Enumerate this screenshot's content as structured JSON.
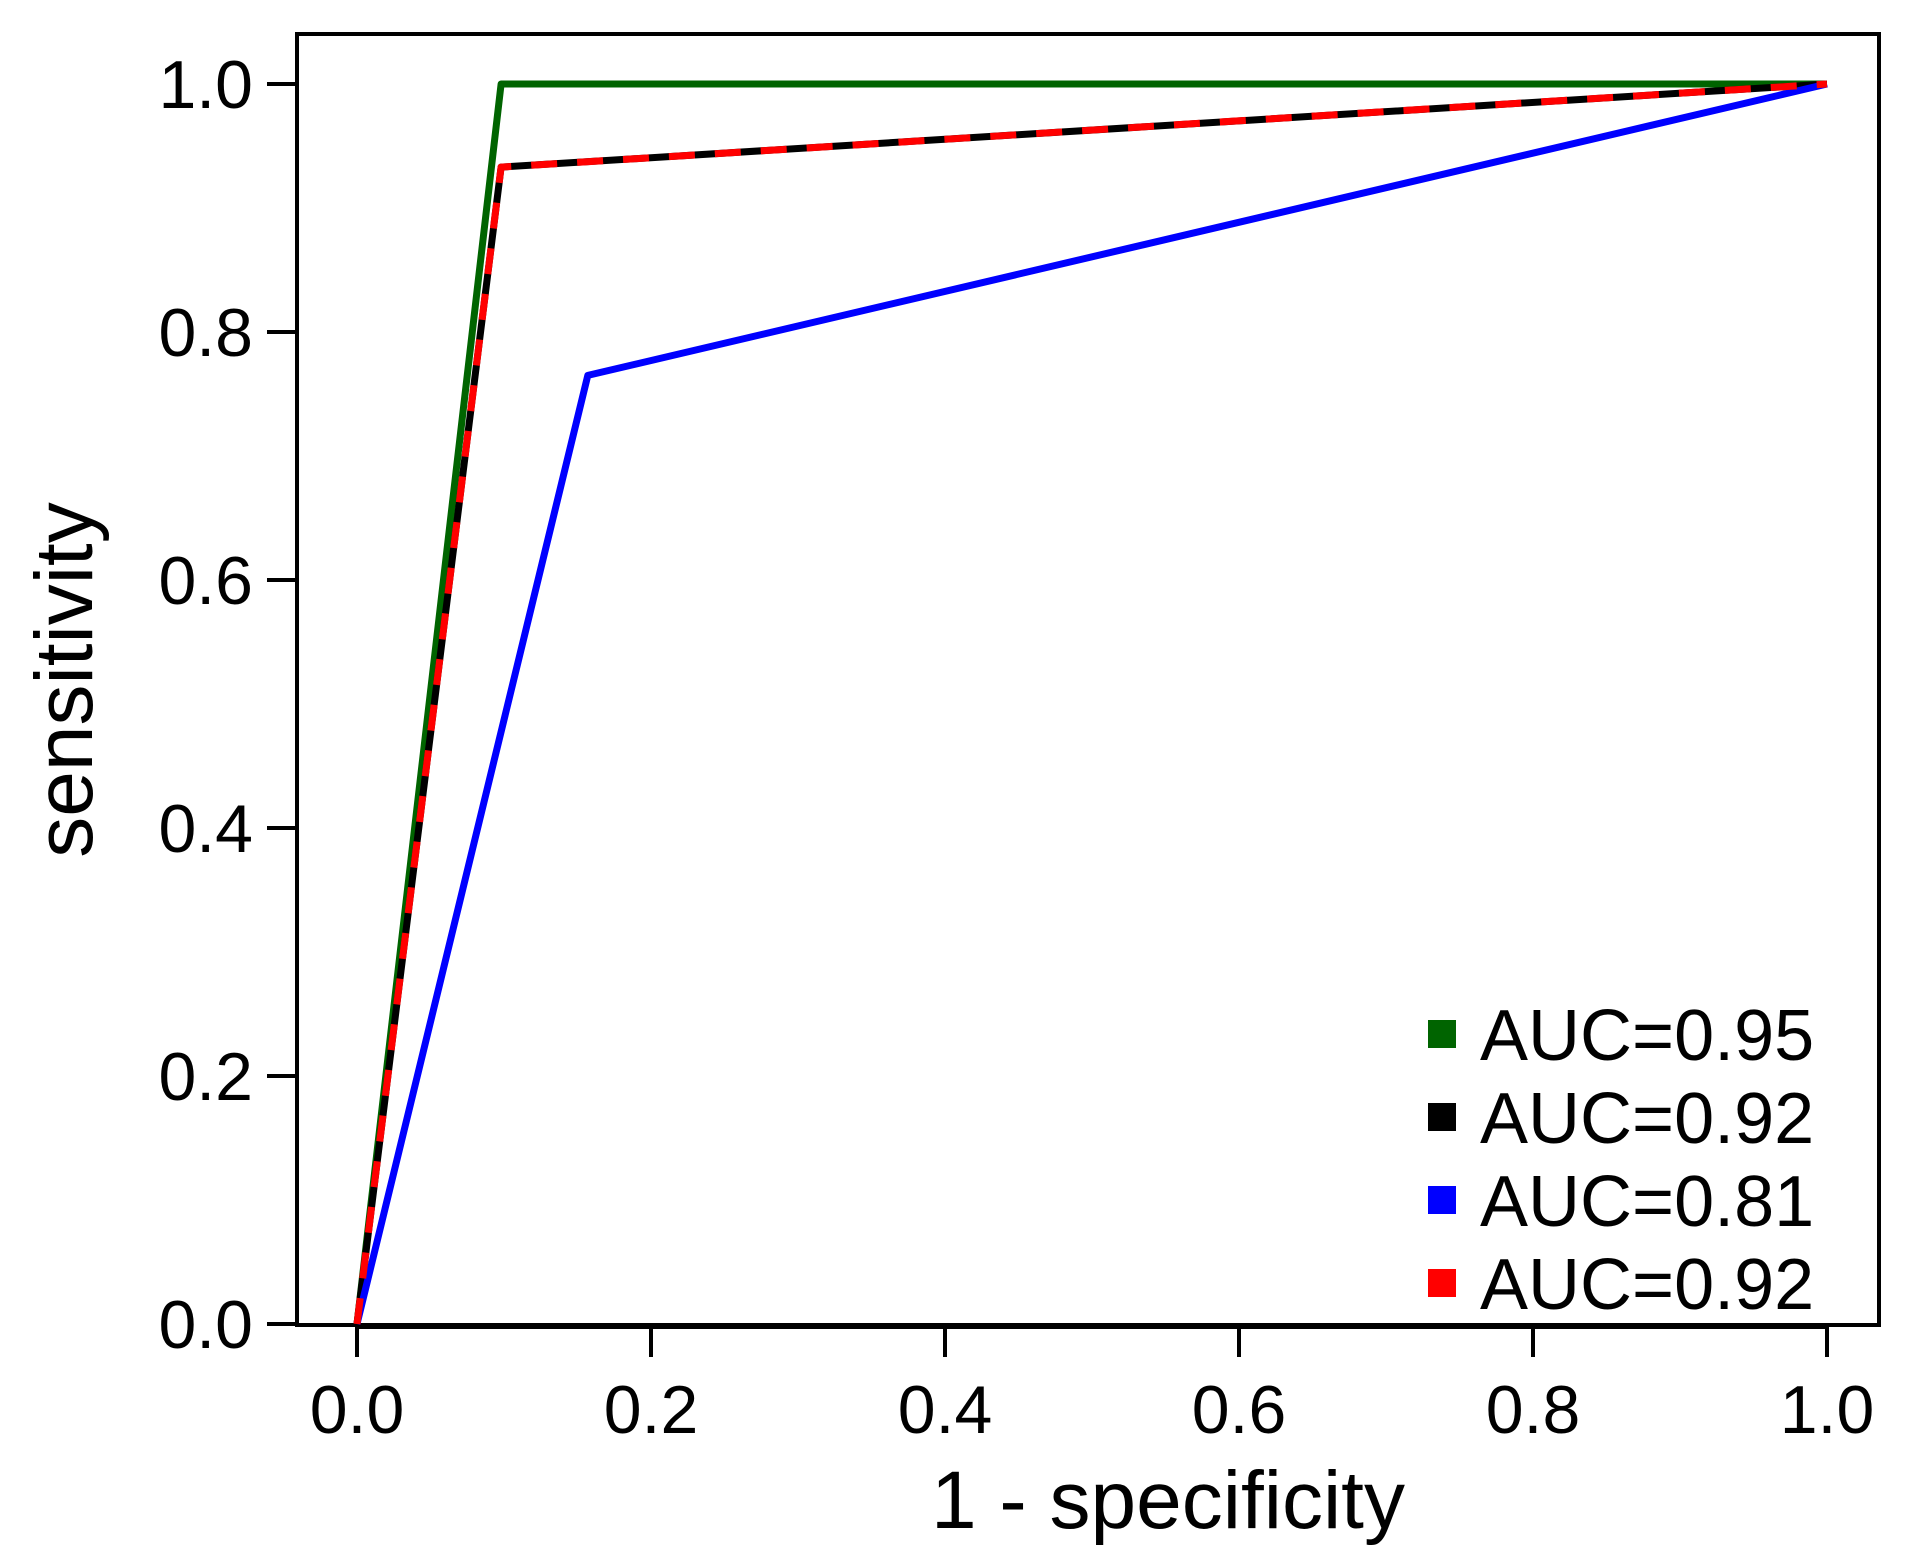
{
  "chart_data": {
    "type": "line",
    "title": "",
    "xlabel": "1 - specificity",
    "ylabel": "sensitivity",
    "xlim": [
      0,
      1
    ],
    "ylim": [
      0,
      1
    ],
    "xticks": [
      "0.0",
      "0.2",
      "0.4",
      "0.6",
      "0.8",
      "1.0"
    ],
    "yticks": [
      "0.0",
      "0.2",
      "0.4",
      "0.6",
      "0.8",
      "1.0"
    ],
    "grid": false,
    "legend_position": "bottom-right",
    "series": [
      {
        "name": "AUC=0.95",
        "color": "#006400",
        "dashed": false,
        "x": [
          0,
          0.098,
          1
        ],
        "y": [
          0,
          1.0,
          1.0
        ]
      },
      {
        "name": "AUC=0.92",
        "color": "#000000",
        "dashed": false,
        "x": [
          0,
          0.098,
          1
        ],
        "y": [
          0,
          0.933,
          1.0
        ]
      },
      {
        "name": "AUC=0.81",
        "color": "#0000ff",
        "dashed": false,
        "x": [
          0,
          0.157,
          1
        ],
        "y": [
          0,
          0.765,
          1.0
        ]
      },
      {
        "name": "AUC=0.92",
        "color": "#ff0000",
        "dashed": true,
        "x": [
          0,
          0.098,
          1
        ],
        "y": [
          0,
          0.933,
          1.0
        ]
      }
    ]
  }
}
